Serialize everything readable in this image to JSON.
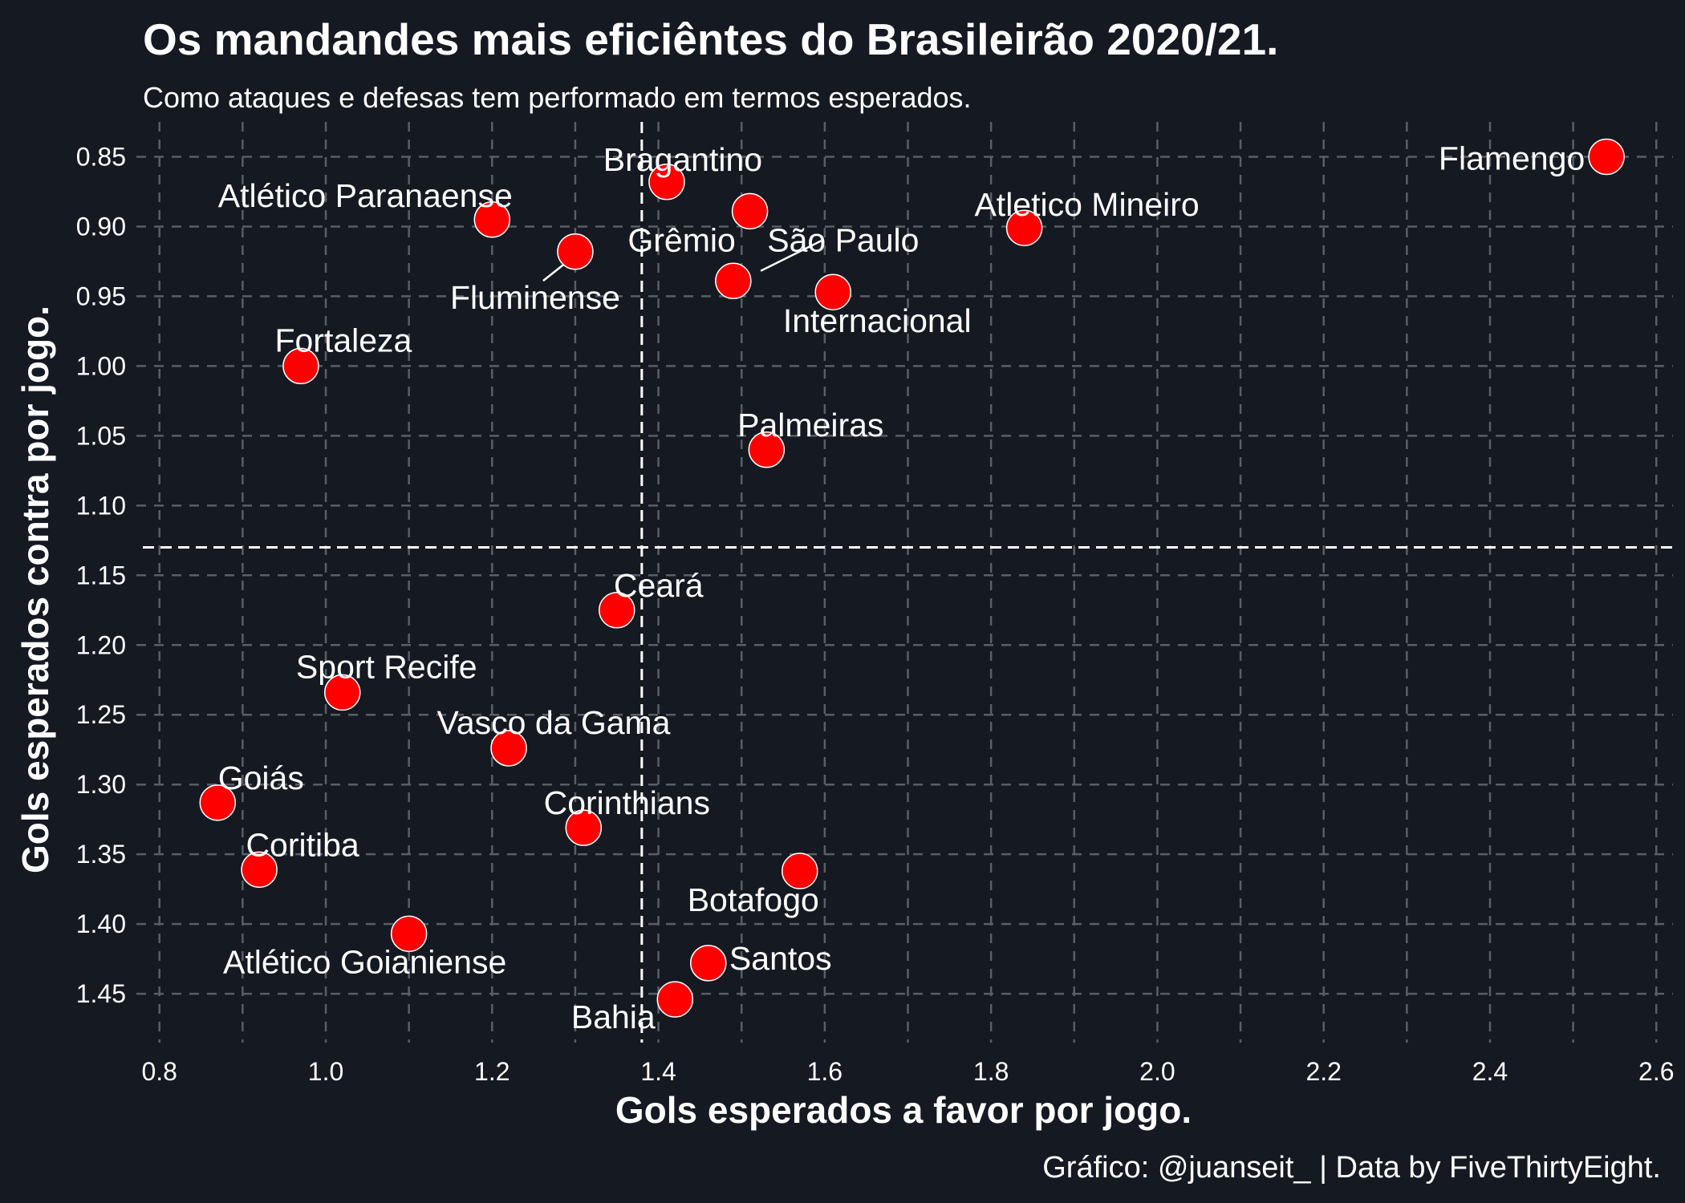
{
  "chart_data": {
    "type": "scatter",
    "title": "Os mandandes mais eficiêntes do Brasileirão 2020/21.",
    "subtitle": "Como ataques e defesas tem performado em termos esperados.",
    "caption": "Gráfico: @juanseit_ | Data by FiveThirtyEight.",
    "xlabel": "Gols esperados a favor por jogo.",
    "ylabel": "Gols esperados contra por jogo.",
    "xlim": [
      0.78,
      2.62
    ],
    "ylim": [
      0.825,
      1.485
    ],
    "y_reversed": true,
    "x_ticks": [
      "0.8",
      "1.0",
      "1.2",
      "1.4",
      "1.6",
      "1.8",
      "2.0",
      "2.2",
      "2.4",
      "2.6"
    ],
    "y_ticks": [
      "0.85",
      "0.90",
      "0.95",
      "1.00",
      "1.05",
      "1.10",
      "1.15",
      "1.20",
      "1.25",
      "1.30",
      "1.35",
      "1.40",
      "1.45"
    ],
    "grid": true,
    "reference_lines": {
      "x": 1.38,
      "y": 1.13
    },
    "colors": {
      "background": "#151922",
      "point": "#ff0000",
      "point_outline": "#ffffff",
      "grid": "#5a5e66",
      "text": "#ffffff"
    },
    "points": [
      {
        "name": "Flamengo",
        "x": 2.54,
        "y": 0.85
      },
      {
        "name": "Bragantino",
        "x": 1.41,
        "y": 0.868
      },
      {
        "name": "Atlético Paranaense",
        "x": 1.2,
        "y": 0.895
      },
      {
        "name": "Grêmio",
        "x": 1.51,
        "y": 0.889
      },
      {
        "name": "Atletico Mineiro",
        "x": 1.84,
        "y": 0.901
      },
      {
        "name": "Fluminense",
        "x": 1.3,
        "y": 0.918
      },
      {
        "name": "São Paulo",
        "x": 1.49,
        "y": 0.939
      },
      {
        "name": "Internacional",
        "x": 1.61,
        "y": 0.947
      },
      {
        "name": "Fortaleza",
        "x": 0.97,
        "y": 1.0
      },
      {
        "name": "Palmeiras",
        "x": 1.53,
        "y": 1.06
      },
      {
        "name": "Ceará",
        "x": 1.35,
        "y": 1.175
      },
      {
        "name": "Sport Recife",
        "x": 1.02,
        "y": 1.234
      },
      {
        "name": "Vasco da Gama",
        "x": 1.22,
        "y": 1.274
      },
      {
        "name": "Goiás",
        "x": 0.87,
        "y": 1.313
      },
      {
        "name": "Corinthians",
        "x": 1.31,
        "y": 1.331
      },
      {
        "name": "Coritiba",
        "x": 0.92,
        "y": 1.361
      },
      {
        "name": "Botafogo",
        "x": 1.57,
        "y": 1.362
      },
      {
        "name": "Atlético Goianiense",
        "x": 1.1,
        "y": 1.407
      },
      {
        "name": "Santos",
        "x": 1.46,
        "y": 1.428
      },
      {
        "name": "Bahia",
        "x": 1.42,
        "y": 1.454
      }
    ]
  }
}
